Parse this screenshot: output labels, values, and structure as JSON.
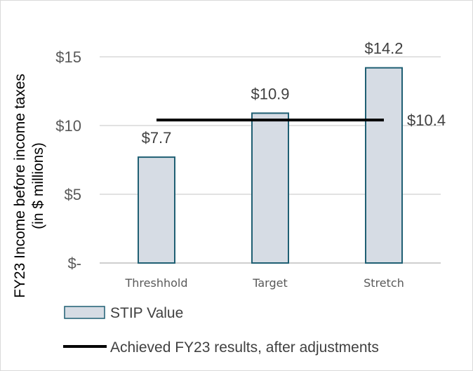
{
  "chart_data": {
    "type": "bar",
    "title": "",
    "ylabel_lines": [
      "FY23 Income before income taxes",
      "(in $ millions)"
    ],
    "xlabel": "",
    "ylim": [
      0,
      15
    ],
    "yticks": [
      {
        "value": 0,
        "label": "$-"
      },
      {
        "value": 5,
        "label": "$5"
      },
      {
        "value": 10,
        "label": "$10"
      },
      {
        "value": 15,
        "label": "$15"
      }
    ],
    "categories": [
      "Threshhold",
      "Target",
      "Stretch"
    ],
    "series": [
      {
        "name": "STIP Value",
        "kind": "bar",
        "values": [
          7.7,
          10.9,
          14.2
        ],
        "data_labels": [
          "$7.7",
          "$10.9",
          "$14.2"
        ]
      }
    ],
    "reference_line": {
      "name": "Achieved FY23 results, after adjustments",
      "value": 10.4,
      "label": "$10.4"
    },
    "grid": true,
    "legend_position": "bottom",
    "colors": {
      "bar_fill": "#d6dce4",
      "bar_stroke": "#1f5f73",
      "line": "#000000",
      "grid": "#d9d9d9",
      "axis": "#bfbfbf"
    }
  }
}
